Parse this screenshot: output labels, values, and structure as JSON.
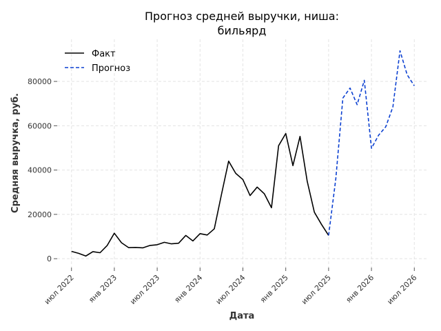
{
  "chart_data": {
    "type": "line",
    "title_line1": "Прогноз средней выручки, ниша:",
    "title_line2": "бильярд",
    "xlabel": "Дата",
    "ylabel": "Средняя выручка, руб.",
    "x_ticks": [
      "2022-07",
      "2023-01",
      "2023-07",
      "2024-01",
      "2024-07",
      "2025-01",
      "2025-07",
      "2026-01",
      "2026-07"
    ],
    "x_tick_labels": [
      "июл 2022",
      "янв 2023",
      "июл 2023",
      "янв 2024",
      "июл 2024",
      "янв 2025",
      "июл 2025",
      "янв 2026",
      "июл 2026"
    ],
    "y_ticks": [
      0,
      20000,
      40000,
      60000,
      80000
    ],
    "y_tick_labels": [
      "0",
      "20000",
      "40000",
      "60000",
      "80000"
    ],
    "xlim": [
      "2022-05",
      "2026-09"
    ],
    "ylim": [
      -4000,
      99000
    ],
    "grid": true,
    "legend_position": "top-left",
    "series": [
      {
        "name": "Факт",
        "color": "#000000",
        "style": "solid",
        "x": [
          "2022-07",
          "2022-08",
          "2022-09",
          "2022-10",
          "2022-11",
          "2022-12",
          "2023-01",
          "2023-02",
          "2023-03",
          "2023-04",
          "2023-05",
          "2023-06",
          "2023-07",
          "2023-08",
          "2023-09",
          "2023-10",
          "2023-11",
          "2023-12",
          "2024-01",
          "2024-02",
          "2024-03",
          "2024-04",
          "2024-05",
          "2024-06",
          "2024-07",
          "2024-08",
          "2024-09",
          "2024-10",
          "2024-11",
          "2024-12",
          "2025-01",
          "2025-02",
          "2025-03",
          "2025-04",
          "2025-05",
          "2025-06",
          "2025-07"
        ],
        "values": [
          3300,
          2400,
          1200,
          3200,
          2700,
          6000,
          11500,
          7200,
          5000,
          5100,
          4900,
          6000,
          6300,
          7400,
          6700,
          7000,
          10500,
          8000,
          11300,
          10700,
          13500,
          29000,
          44000,
          38500,
          35700,
          28500,
          32300,
          29300,
          23000,
          51000,
          56500,
          42000,
          55200,
          35000,
          21000,
          15500,
          10500
        ]
      },
      {
        "name": "Прогноз",
        "color": "#0a3fd1",
        "style": "dashed",
        "x": [
          "2025-07",
          "2025-08",
          "2025-09",
          "2025-10",
          "2025-11",
          "2025-12",
          "2026-01",
          "2026-02",
          "2026-03",
          "2026-04",
          "2026-05",
          "2026-06",
          "2026-07"
        ],
        "values": [
          10500,
          36000,
          72500,
          77000,
          69500,
          80500,
          49800,
          55700,
          59500,
          68500,
          93800,
          83000,
          78000
        ]
      }
    ]
  }
}
